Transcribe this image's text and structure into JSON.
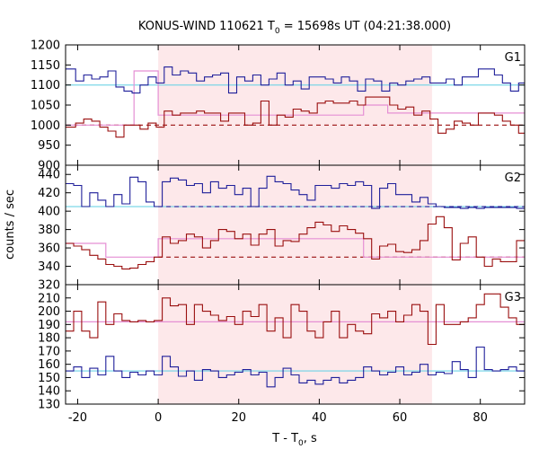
{
  "chart_data": {
    "type": "line",
    "title": {
      "prefix": "KONUS-WIND 110621 T",
      "sub": "0",
      "suffix": " = 15698s UT (04:21:38.000)"
    },
    "xlabel": {
      "main": "T - T",
      "sub": "0",
      "suffix": ", s"
    },
    "ylabel": "counts / sec",
    "xlim": [
      -23,
      91
    ],
    "xticks": [
      -20,
      0,
      20,
      40,
      60,
      80
    ],
    "highlight_interval": [
      0,
      68
    ],
    "colors": {
      "blue": "#1f1f9a",
      "red": "#9a0f0f",
      "cyan": "#6fd3e6",
      "pink": "#e58fd4",
      "shade": "#fde8ea"
    },
    "panels": [
      {
        "label": "G1",
        "ylim": [
          900,
          1200
        ],
        "yticks": [
          900,
          950,
          1000,
          1050,
          1100,
          1150,
          1200
        ],
        "series": [
          {
            "color_key": "blue",
            "x": [
              -23,
              -20.5,
              -18.5,
              -16.5,
              -14.5,
              -12.5,
              -10.5,
              -8.5,
              -6.5,
              -4.5,
              -2.5,
              -0.5,
              1.5,
              3.5,
              5.5,
              7.5,
              9.5,
              11.5,
              13.5,
              15.5,
              17.5,
              19.5,
              21.5,
              23.5,
              25.5,
              27.5,
              29.5,
              31.5,
              33.5,
              35.5,
              37.5,
              39.5,
              41.5,
              43.5,
              45.5,
              47.5,
              49.5,
              51.5,
              53.5,
              55.5,
              57.5,
              59.5,
              61.5,
              63.5,
              65.5,
              67.5,
              69.5,
              71.5,
              73.5,
              75.5,
              77.5,
              79.5,
              81.5,
              83.5,
              85.5,
              87.5,
              89.5
            ],
            "y": [
              1140,
              1110,
              1125,
              1115,
              1120,
              1135,
              1095,
              1085,
              1080,
              1100,
              1120,
              1105,
              1145,
              1125,
              1135,
              1130,
              1110,
              1120,
              1125,
              1130,
              1080,
              1120,
              1110,
              1125,
              1100,
              1115,
              1130,
              1100,
              1110,
              1090,
              1120,
              1120,
              1115,
              1105,
              1120,
              1110,
              1085,
              1115,
              1110,
              1085,
              1105,
              1100,
              1110,
              1115,
              1120,
              1105,
              1105,
              1115,
              1100,
              1120,
              1120,
              1140,
              1140,
              1125,
              1105,
              1085,
              1105
            ]
          },
          {
            "color_key": "red",
            "x": [
              -23,
              -20.5,
              -18.5,
              -16.5,
              -14.5,
              -12.5,
              -10.5,
              -8.5,
              -6.5,
              -4.5,
              -2.5,
              -0.5,
              1.5,
              3.5,
              5.5,
              7.5,
              9.5,
              11.5,
              13.5,
              15.5,
              17.5,
              19.5,
              21.5,
              23.5,
              25.5,
              27.5,
              29.5,
              31.5,
              33.5,
              35.5,
              37.5,
              39.5,
              41.5,
              43.5,
              45.5,
              47.5,
              49.5,
              51.5,
              53.5,
              55.5,
              57.5,
              59.5,
              61.5,
              63.5,
              65.5,
              67.5,
              69.5,
              71.5,
              73.5,
              75.5,
              77.5,
              79.5,
              81.5,
              83.5,
              85.5,
              87.5,
              89.5
            ],
            "y": [
              995,
              1005,
              1015,
              1010,
              995,
              985,
              970,
              1000,
              1000,
              990,
              1005,
              995,
              1035,
              1025,
              1030,
              1030,
              1035,
              1030,
              1030,
              1010,
              1030,
              1030,
              1000,
              1005,
              1060,
              1000,
              1025,
              1020,
              1040,
              1035,
              1030,
              1055,
              1060,
              1055,
              1055,
              1060,
              1050,
              1070,
              1070,
              1070,
              1050,
              1040,
              1045,
              1025,
              1035,
              1015,
              980,
              990,
              1010,
              1005,
              1000,
              1030,
              1030,
              1025,
              1010,
              1000,
              980
            ]
          }
        ],
        "levels": [
          {
            "color_key": "cyan",
            "style": "solid",
            "x": [
              -23,
              91
            ],
            "y": 1100
          },
          {
            "color_key": "red",
            "style": "dashed",
            "x": [
              -23,
              91
            ],
            "y": 1000
          }
        ],
        "steps": [
          {
            "color_key": "pink",
            "x": [
              -23,
              -8,
              -6,
              0,
              51,
              57,
              68,
              91
            ],
            "y": [
              1000,
              1000,
              1135,
              1025,
              1050,
              1030,
              1030,
              1000
            ]
          }
        ]
      },
      {
        "label": "G2",
        "ylim": [
          320,
          450
        ],
        "yticks": [
          320,
          340,
          360,
          380,
          400,
          420,
          440
        ],
        "series": [
          {
            "color_key": "blue",
            "x": [
              -23,
              -21,
              -19,
              -17,
              -15,
              -13,
              -11,
              -9,
              -7,
              -5,
              -3,
              -1,
              1,
              3,
              5,
              7,
              9,
              11,
              13,
              15,
              17,
              19,
              21,
              23,
              25,
              27,
              29,
              31,
              33,
              35,
              37,
              39,
              41,
              43,
              45,
              47,
              49,
              51,
              53,
              55,
              57,
              59,
              61,
              63,
              65,
              67,
              69,
              71,
              73,
              75,
              77,
              79,
              81,
              83,
              85,
              87,
              89
            ],
            "y": [
              430,
              428,
              405,
              420,
              412,
              405,
              418,
              408,
              437,
              432,
              410,
              405,
              432,
              436,
              434,
              428,
              430,
              420,
              432,
              425,
              428,
              418,
              425,
              405,
              425,
              438,
              432,
              430,
              423,
              418,
              412,
              428,
              428,
              425,
              430,
              428,
              432,
              428,
              403,
              425,
              430,
              418,
              418,
              410,
              415,
              408,
              405,
              404,
              404,
              403,
              404,
              403,
              404,
              404,
              404,
              404,
              403
            ]
          },
          {
            "color_key": "red",
            "x": [
              -23,
              -21,
              -19,
              -17,
              -15,
              -13,
              -11,
              -9,
              -7,
              -5,
              -3,
              -1,
              1,
              3,
              5,
              7,
              9,
              11,
              13,
              15,
              17,
              19,
              21,
              23,
              25,
              27,
              29,
              31,
              33,
              35,
              37,
              39,
              41,
              43,
              45,
              47,
              49,
              51,
              53,
              55,
              57,
              59,
              61,
              63,
              65,
              67,
              69,
              71,
              73,
              75,
              77,
              79,
              81,
              83,
              85,
              87,
              89
            ],
            "y": [
              365,
              362,
              358,
              352,
              348,
              342,
              340,
              337,
              338,
              342,
              345,
              350,
              372,
              365,
              368,
              375,
              372,
              360,
              368,
              380,
              378,
              370,
              375,
              363,
              375,
              380,
              362,
              368,
              367,
              375,
              382,
              388,
              385,
              378,
              384,
              380,
              376,
              370,
              348,
              362,
              364,
              356,
              355,
              358,
              368,
              386,
              394,
              382,
              347,
              365,
              372,
              350,
              340,
              348,
              345,
              345,
              368
            ]
          }
        ],
        "levels": [
          {
            "color_key": "cyan",
            "style": "solid",
            "x": [
              -23,
              91
            ],
            "y": 405
          },
          {
            "color_key": "blue",
            "style": "dashed",
            "x": [
              0,
              91
            ],
            "y": 405
          },
          {
            "color_key": "red",
            "style": "dashed",
            "x": [
              0,
              91
            ],
            "y": 350
          }
        ],
        "steps": [
          {
            "color_key": "pink",
            "x": [
              -23,
              -13,
              0,
              51,
              68,
              91
            ],
            "y": [
              365,
              350,
              370,
              350,
              350,
              350
            ]
          }
        ]
      },
      {
        "label": "G3",
        "ylim": [
          130,
          220
        ],
        "yticks": [
          130,
          140,
          150,
          160,
          170,
          180,
          190,
          200,
          210
        ],
        "series": [
          {
            "color_key": "red",
            "x": [
              -23,
              -21,
              -19,
              -17,
              -15,
              -13,
              -11,
              -9,
              -7,
              -5,
              -3,
              -1,
              1,
              3,
              5,
              7,
              9,
              11,
              13,
              15,
              17,
              19,
              21,
              23,
              25,
              27,
              29,
              31,
              33,
              35,
              37,
              39,
              41,
              43,
              45,
              47,
              49,
              51,
              53,
              55,
              57,
              59,
              61,
              63,
              65,
              67,
              69,
              71,
              73,
              75,
              77,
              79,
              81,
              83,
              85,
              87,
              89
            ],
            "y": [
              185,
              200,
              185,
              180,
              207,
              190,
              198,
              193,
              192,
              193,
              192,
              193,
              210,
              204,
              205,
              190,
              205,
              200,
              197,
              193,
              196,
              190,
              200,
              196,
              205,
              185,
              195,
              180,
              205,
              200,
              185,
              180,
              192,
              200,
              180,
              190,
              185,
              183,
              198,
              195,
              200,
              192,
              197,
              205,
              200,
              175,
              205,
              190,
              190,
              192,
              195,
              205,
              213,
              213,
              203,
              195,
              190
            ]
          },
          {
            "color_key": "blue",
            "x": [
              -23,
              -21,
              -19,
              -17,
              -15,
              -13,
              -11,
              -9,
              -7,
              -5,
              -3,
              -1,
              1,
              3,
              5,
              7,
              9,
              11,
              13,
              15,
              17,
              19,
              21,
              23,
              25,
              27,
              29,
              31,
              33,
              35,
              37,
              39,
              41,
              43,
              45,
              47,
              49,
              51,
              53,
              55,
              57,
              59,
              61,
              63,
              65,
              67,
              69,
              71,
              73,
              75,
              77,
              79,
              81,
              83,
              85,
              87,
              89
            ],
            "y": [
              155,
              158,
              150,
              157,
              152,
              166,
              155,
              150,
              154,
              152,
              155,
              152,
              166,
              158,
              151,
              155,
              148,
              156,
              155,
              150,
              152,
              154,
              156,
              152,
              154,
              143,
              150,
              157,
              152,
              146,
              148,
              145,
              148,
              150,
              146,
              148,
              150,
              158,
              155,
              152,
              154,
              158,
              152,
              154,
              160,
              152,
              154,
              153,
              162,
              156,
              150,
              173,
              156,
              155,
              156,
              158,
              155
            ]
          }
        ],
        "levels": [
          {
            "color_key": "pink",
            "style": "solid",
            "x": [
              -23,
              91
            ],
            "y": 192
          },
          {
            "color_key": "cyan",
            "style": "solid",
            "x": [
              -23,
              91
            ],
            "y": 155
          }
        ],
        "steps": []
      }
    ]
  }
}
